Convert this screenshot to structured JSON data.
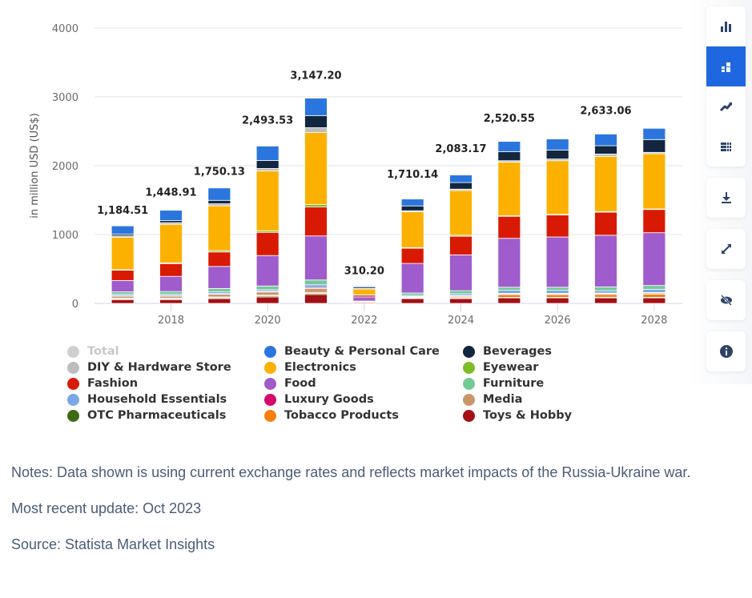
{
  "chart_data": {
    "type": "bar",
    "stacked": true,
    "title": "",
    "xlabel": "",
    "ylabel": "in million USD (US$)",
    "ylim": [
      0,
      4000
    ],
    "yticks": [
      0,
      1000,
      2000,
      3000,
      4000
    ],
    "grid": true,
    "legend_position": "bottom",
    "categories": [
      "2017",
      "2018",
      "2019",
      "2020",
      "2021",
      "2022",
      "2023",
      "2024",
      "2025",
      "2026",
      "2027",
      "2028"
    ],
    "xtick_labels": [
      "2018",
      "2020",
      "2022",
      "2024",
      "2026",
      "2028"
    ],
    "totals": [
      1184.51,
      1448.91,
      1750.13,
      2493.53,
      3147.2,
      310.2,
      1710.14,
      2083.17,
      2520.55,
      2550.0,
      2633.06,
      2756.0
    ],
    "total_labels": [
      "1,184.51",
      "1,448.91",
      "1,750.13",
      "2,493.53",
      "3,147.20",
      "310.20",
      "1,710.14",
      "2,083.17",
      "2,520.55",
      "",
      "2,633.06",
      ""
    ],
    "series": [
      {
        "name": "Toys & Hobby",
        "color": "#a50f15",
        "values": [
          55,
          55,
          70,
          93,
          130,
          18,
          70,
          70,
          80,
          80,
          80,
          80
        ]
      },
      {
        "name": "OTC Pharmaceuticals",
        "color": "#3d6b12",
        "values": [
          12,
          12,
          12,
          15,
          15,
          2,
          8,
          10,
          8,
          8,
          10,
          8
        ]
      },
      {
        "name": "Tobacco Products",
        "color": "#f77f0c",
        "values": [
          10,
          10,
          12,
          12,
          15,
          2,
          8,
          15,
          40,
          40,
          40,
          45
        ]
      },
      {
        "name": "Media",
        "color": "#c9966a",
        "values": [
          30,
          30,
          40,
          46,
          55,
          4,
          12,
          15,
          12,
          12,
          15,
          20
        ]
      },
      {
        "name": "Luxury Goods",
        "color": "#d6066b",
        "values": [
          6,
          6,
          8,
          10,
          15,
          1,
          3,
          5,
          5,
          5,
          5,
          5
        ]
      },
      {
        "name": "Household Essentials",
        "color": "#7aa7e6",
        "values": [
          20,
          20,
          25,
          23,
          40,
          3,
          15,
          25,
          45,
          45,
          35,
          47
        ]
      },
      {
        "name": "Furniture",
        "color": "#74c998",
        "values": [
          35,
          40,
          50,
          54,
          70,
          4,
          35,
          45,
          45,
          45,
          55,
          55
        ]
      },
      {
        "name": "Food",
        "color": "#9f5ccc",
        "values": [
          165,
          220,
          320,
          442,
          640,
          60,
          430,
          520,
          710,
          730,
          750,
          767
        ]
      },
      {
        "name": "Fashion",
        "color": "#d91a02",
        "values": [
          150,
          185,
          210,
          337,
          420,
          30,
          220,
          270,
          320,
          320,
          335,
          337
        ]
      },
      {
        "name": "Eyewear",
        "color": "#7dbd23",
        "values": [
          8,
          10,
          20,
          23,
          35,
          2,
          10,
          15,
          8,
          8,
          10,
          8
        ]
      },
      {
        "name": "Electronics",
        "color": "#fcb100",
        "values": [
          470,
          560,
          650,
          870,
          1047,
          85,
          520,
          650,
          780,
          780,
          800,
          802
        ]
      },
      {
        "name": "DIY & Hardware Store",
        "color": "#bdbdbd",
        "values": [
          20,
          25,
          30,
          35,
          70,
          5,
          15,
          20,
          20,
          25,
          35,
          20
        ]
      },
      {
        "name": "Beverages",
        "color": "#12263f",
        "values": [
          25,
          30,
          50,
          116,
          174,
          20,
          70,
          95,
          130,
          130,
          120,
          186
        ]
      },
      {
        "name": "Beauty & Personal Care",
        "color": "#2b76de",
        "values": [
          120,
          150,
          180,
          209,
          256,
          15,
          100,
          110,
          150,
          160,
          170,
          163
        ]
      }
    ],
    "legend": [
      {
        "name": "Total",
        "color": "#cfcfcf",
        "disabled": true
      },
      {
        "name": "Beauty & Personal Care",
        "color": "#2b76de"
      },
      {
        "name": "Beverages",
        "color": "#12263f"
      },
      {
        "name": "DIY & Hardware Store",
        "color": "#bdbdbd"
      },
      {
        "name": "Electronics",
        "color": "#fcb100"
      },
      {
        "name": "Eyewear",
        "color": "#7dbd23"
      },
      {
        "name": "Fashion",
        "color": "#d91a02"
      },
      {
        "name": "Food",
        "color": "#9f5ccc"
      },
      {
        "name": "Furniture",
        "color": "#74c998"
      },
      {
        "name": "Household Essentials",
        "color": "#7aa7e6"
      },
      {
        "name": "Luxury Goods",
        "color": "#d6066b"
      },
      {
        "name": "Media",
        "color": "#c9966a"
      },
      {
        "name": "OTC Pharmaceuticals",
        "color": "#3d6b12"
      },
      {
        "name": "Tobacco Products",
        "color": "#f77f0c"
      },
      {
        "name": "Toys & Hobby",
        "color": "#a50f15"
      }
    ]
  },
  "toolbar": {
    "groups": [
      [
        {
          "icon": "bar-chart-icon",
          "active": false
        },
        {
          "icon": "stacked-bar-icon",
          "active": true
        },
        {
          "icon": "line-chart-icon",
          "active": false
        },
        {
          "icon": "table-icon",
          "active": false
        }
      ],
      [
        {
          "icon": "download-icon",
          "active": false
        }
      ],
      [
        {
          "icon": "fullscreen-icon",
          "active": false
        }
      ],
      [
        {
          "icon": "hide-icon",
          "active": false
        }
      ],
      [
        {
          "icon": "info-icon",
          "active": false
        }
      ]
    ],
    "accent_color": "#1f67e0",
    "icon_color": "#2c4466"
  },
  "notes": {
    "note": "Notes: Data shown is using current exchange rates and reflects market impacts of the Russia-Ukraine war.",
    "update": "Most recent update: Oct 2023",
    "source": "Source: Statista Market Insights"
  }
}
